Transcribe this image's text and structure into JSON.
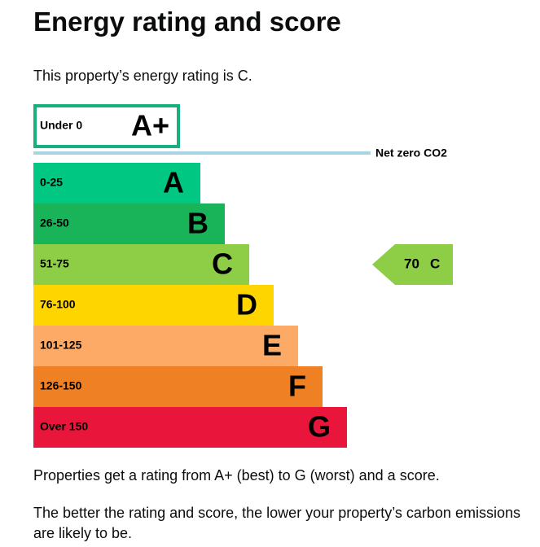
{
  "title": "Energy rating and score",
  "intro": "This property’s energy rating is C.",
  "bands": [
    {
      "range": "Under 0",
      "letter": "A+",
      "color": "#17b07c"
    },
    {
      "range": "0-25",
      "letter": "A",
      "color": "#00c781"
    },
    {
      "range": "26-50",
      "letter": "B",
      "color": "#19b459"
    },
    {
      "range": "51-75",
      "letter": "C",
      "color": "#8dce46"
    },
    {
      "range": "76-100",
      "letter": "D",
      "color": "#ffd500"
    },
    {
      "range": "101-125",
      "letter": "E",
      "color": "#fcaa65"
    },
    {
      "range": "126-150",
      "letter": "F",
      "color": "#ef8023"
    },
    {
      "range": "Over 150",
      "letter": "G",
      "color": "#e9153b"
    }
  ],
  "net_zero": {
    "label": "Net zero CO2",
    "color": "#a8d3e0"
  },
  "current": {
    "score": "70",
    "letter": "C",
    "color": "#8dce46"
  },
  "paragraphs": [
    "Properties get a rating from A+ (best) to G (worst) and a score.",
    "The better the rating and score, the lower your property’s carbon emissions are likely to be."
  ]
}
